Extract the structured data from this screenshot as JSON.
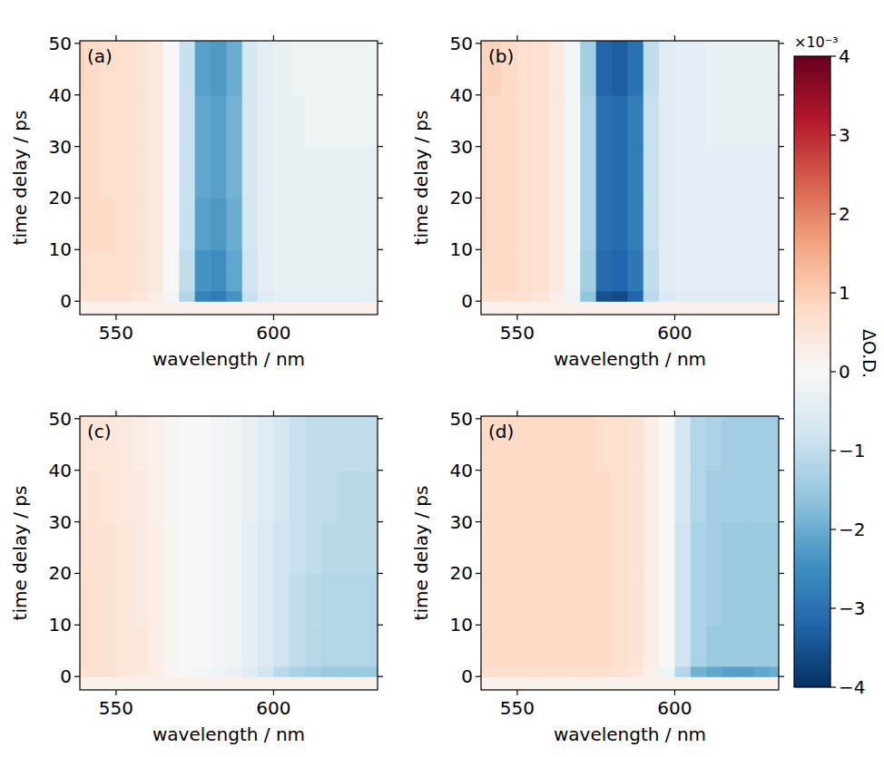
{
  "chart_data": {
    "type": "heatmap",
    "colorbar": {
      "label": "ΔO.D.",
      "offset_text": "×10⁻³",
      "clim": [
        -4,
        4
      ],
      "ticks": [
        {
          "value": -4,
          "label": "−4"
        },
        {
          "value": -3,
          "label": "−3"
        },
        {
          "value": -2,
          "label": "−2"
        },
        {
          "value": -1,
          "label": "−1"
        },
        0,
        1,
        2,
        3,
        4
      ]
    },
    "panels": [
      {
        "panel_label": "(a)",
        "x_label": "wavelength / nm",
        "y_label": "time delay / ps",
        "xlim": [
          538.5,
          633
        ],
        "ylim": [
          -2.6,
          50.5
        ],
        "xticks": [
          550,
          600
        ],
        "yticks": [
          0,
          10,
          20,
          30,
          40,
          50
        ],
        "x_edges": [
          535,
          540,
          545,
          550,
          555,
          560,
          565,
          570,
          575,
          580,
          585,
          590,
          595,
          600,
          605,
          610,
          615,
          620,
          625,
          630,
          635
        ],
        "y_edges": [
          -3,
          0,
          2,
          10,
          20,
          30,
          40,
          51
        ],
        "z": [
          [
            0.2,
            0.2,
            0.2,
            0.2,
            0.2,
            0.2,
            0.2,
            0.2,
            0.2,
            0.2,
            0.2,
            0.2,
            0.2,
            0.2,
            0.2,
            0.2,
            0.2,
            0.2,
            0.2,
            0.2
          ],
          [
            0.6,
            0.6,
            0.6,
            0.6,
            0.5,
            0.3,
            -0.1,
            -1.2,
            -2.7,
            -2.8,
            -2.4,
            -0.9,
            -0.5,
            -0.4,
            -0.4,
            -0.4,
            -0.4,
            -0.4,
            -0.4,
            -0.4
          ],
          [
            0.7,
            0.7,
            0.7,
            0.7,
            0.6,
            0.4,
            0,
            -1.0,
            -2.4,
            -2.5,
            -2.1,
            -0.8,
            -0.4,
            -0.3,
            -0.3,
            -0.3,
            -0.3,
            -0.3,
            -0.3,
            -0.3
          ],
          [
            0.8,
            0.8,
            0.8,
            0.7,
            0.6,
            0.4,
            0,
            -0.9,
            -2.2,
            -2.3,
            -2.0,
            -0.7,
            -0.4,
            -0.3,
            -0.3,
            -0.3,
            -0.3,
            -0.3,
            -0.3,
            -0.3
          ],
          [
            0.8,
            0.8,
            0.7,
            0.7,
            0.6,
            0.4,
            0,
            -0.9,
            -2.1,
            -2.2,
            -1.9,
            -0.7,
            -0.4,
            -0.3,
            -0.3,
            -0.3,
            -0.3,
            -0.3,
            -0.3,
            -0.3
          ],
          [
            0.8,
            0.8,
            0.7,
            0.7,
            0.6,
            0.4,
            0,
            -0.9,
            -2.1,
            -2.2,
            -1.9,
            -0.7,
            -0.4,
            -0.3,
            -0.3,
            -0.2,
            -0.2,
            -0.2,
            -0.2,
            -0.2
          ],
          [
            0.9,
            0.8,
            0.7,
            0.7,
            0.6,
            0.4,
            0,
            -0.9,
            -2.2,
            -2.3,
            -2.0,
            -0.7,
            -0.4,
            -0.3,
            -0.2,
            -0.2,
            -0.2,
            -0.2,
            -0.2,
            -0.2
          ]
        ]
      },
      {
        "panel_label": "(b)",
        "x_label": "wavelength / nm",
        "y_label": "time delay / ps",
        "xlim": [
          538.5,
          633
        ],
        "ylim": [
          -2.6,
          50.5
        ],
        "xticks": [
          550,
          600
        ],
        "yticks": [
          0,
          10,
          20,
          30,
          40,
          50
        ],
        "x_edges": [
          535,
          540,
          545,
          550,
          555,
          560,
          565,
          570,
          575,
          580,
          585,
          590,
          595,
          600,
          605,
          610,
          615,
          620,
          625,
          630,
          635
        ],
        "y_edges": [
          -3,
          0,
          2,
          10,
          20,
          30,
          40,
          51
        ],
        "z": [
          [
            0.2,
            0.2,
            0.2,
            0.2,
            0.2,
            0.2,
            0.2,
            0.2,
            0.2,
            0.2,
            0.2,
            0.2,
            0.2,
            0.2,
            0.2,
            0.2,
            0.2,
            0.2,
            0.2,
            0.2
          ],
          [
            0.7,
            0.7,
            0.7,
            0.6,
            0.5,
            0.3,
            -0.2,
            -1.6,
            -3.5,
            -3.6,
            -3.2,
            -1.1,
            -0.6,
            -0.5,
            -0.5,
            -0.5,
            -0.5,
            -0.5,
            -0.5,
            -0.5
          ],
          [
            0.8,
            0.8,
            0.8,
            0.7,
            0.6,
            0.4,
            -0.1,
            -1.4,
            -3.1,
            -3.2,
            -2.9,
            -1.0,
            -0.5,
            -0.4,
            -0.4,
            -0.4,
            -0.4,
            -0.4,
            -0.4,
            -0.4
          ],
          [
            0.9,
            0.8,
            0.8,
            0.7,
            0.6,
            0.4,
            -0.1,
            -1.3,
            -3.0,
            -3.1,
            -2.8,
            -0.9,
            -0.5,
            -0.4,
            -0.4,
            -0.4,
            -0.4,
            -0.4,
            -0.4,
            -0.4
          ],
          [
            0.9,
            0.8,
            0.8,
            0.7,
            0.6,
            0.4,
            -0.1,
            -1.3,
            -3.0,
            -3.1,
            -2.8,
            -0.9,
            -0.5,
            -0.4,
            -0.4,
            -0.4,
            -0.4,
            -0.4,
            -0.4,
            -0.4
          ],
          [
            0.9,
            0.8,
            0.8,
            0.7,
            0.6,
            0.4,
            -0.1,
            -1.3,
            -3.0,
            -3.1,
            -2.8,
            -0.9,
            -0.5,
            -0.4,
            -0.4,
            -0.3,
            -0.3,
            -0.3,
            -0.3,
            -0.3
          ],
          [
            0.9,
            0.9,
            0.8,
            0.7,
            0.6,
            0.4,
            -0.1,
            -1.4,
            -3.2,
            -3.3,
            -3.0,
            -1.0,
            -0.5,
            -0.4,
            -0.4,
            -0.3,
            -0.3,
            -0.3,
            -0.3,
            -0.3
          ]
        ]
      },
      {
        "panel_label": "(c)",
        "x_label": "wavelength / nm",
        "y_label": "time delay / ps",
        "xlim": [
          538.5,
          633
        ],
        "ylim": [
          -2.6,
          50.5
        ],
        "xticks": [
          550,
          600
        ],
        "yticks": [
          0,
          10,
          20,
          30,
          40,
          50
        ],
        "x_edges": [
          535,
          540,
          545,
          550,
          555,
          560,
          565,
          570,
          575,
          580,
          585,
          590,
          595,
          600,
          605,
          610,
          615,
          620,
          625,
          630,
          635
        ],
        "y_edges": [
          -3,
          0,
          2,
          10,
          20,
          30,
          40,
          51
        ],
        "z": [
          [
            0.2,
            0.2,
            0.2,
            0.2,
            0.2,
            0.2,
            0.2,
            0.2,
            0.2,
            0.2,
            0.2,
            0.2,
            0.2,
            0.2,
            0.2,
            0.2,
            0.2,
            0.2,
            0.2,
            0.2
          ],
          [
            0.6,
            0.6,
            0.6,
            0.5,
            0.4,
            0.3,
            0.1,
            0,
            -0.1,
            -0.2,
            -0.3,
            -0.5,
            -0.8,
            -1.1,
            -1.3,
            -1.4,
            -1.5,
            -1.5,
            -1.5,
            -1.5
          ],
          [
            0.7,
            0.7,
            0.6,
            0.5,
            0.5,
            0.3,
            0.1,
            0,
            0,
            -0.1,
            -0.2,
            -0.4,
            -0.6,
            -0.8,
            -1.0,
            -1.1,
            -1.2,
            -1.2,
            -1.2,
            -1.2
          ],
          [
            0.7,
            0.7,
            0.6,
            0.5,
            0.4,
            0.3,
            0.1,
            0,
            0,
            -0.1,
            -0.2,
            -0.4,
            -0.6,
            -0.8,
            -1.0,
            -1.1,
            -1.2,
            -1.2,
            -1.2,
            -1.2
          ],
          [
            0.7,
            0.6,
            0.6,
            0.5,
            0.4,
            0.3,
            0.1,
            0,
            0,
            -0.1,
            -0.2,
            -0.4,
            -0.6,
            -0.8,
            -0.9,
            -1.0,
            -1.1,
            -1.1,
            -1.1,
            -1.1
          ],
          [
            0.6,
            0.6,
            0.5,
            0.4,
            0.4,
            0.2,
            0.1,
            0,
            0,
            -0.1,
            -0.2,
            -0.3,
            -0.5,
            -0.7,
            -0.9,
            -1.0,
            -1.0,
            -1.1,
            -1.1,
            -1.1
          ],
          [
            0.6,
            0.5,
            0.5,
            0.4,
            0.3,
            0.2,
            0.1,
            0,
            0,
            -0.1,
            -0.2,
            -0.3,
            -0.5,
            -0.7,
            -0.9,
            -1.0,
            -1.0,
            -1.0,
            -1.0,
            -1.0
          ]
        ]
      },
      {
        "panel_label": "(d)",
        "x_label": "wavelength / nm",
        "y_label": "time delay / ps",
        "xlim": [
          538.5,
          633
        ],
        "ylim": [
          -2.6,
          50.5
        ],
        "xticks": [
          550,
          600
        ],
        "yticks": [
          0,
          10,
          20,
          30,
          40,
          50
        ],
        "x_edges": [
          535,
          540,
          545,
          550,
          555,
          560,
          565,
          570,
          575,
          580,
          585,
          590,
          595,
          600,
          605,
          610,
          615,
          620,
          625,
          630,
          635
        ],
        "y_edges": [
          -3,
          0,
          2,
          10,
          20,
          30,
          40,
          51
        ],
        "z": [
          [
            0.2,
            0.2,
            0.2,
            0.2,
            0.2,
            0.2,
            0.2,
            0.2,
            0.2,
            0.2,
            0.2,
            0.2,
            0.2,
            0.2,
            0.2,
            0.2,
            0.2,
            0.2,
            0.2,
            0.2
          ],
          [
            0.7,
            0.7,
            0.7,
            0.7,
            0.7,
            0.7,
            0.7,
            0.7,
            0.7,
            0.6,
            0.5,
            0.2,
            -0.2,
            -1.2,
            -1.9,
            -2.1,
            -2.2,
            -2.2,
            -2.1,
            -2.0
          ],
          [
            0.8,
            0.8,
            0.8,
            0.8,
            0.8,
            0.8,
            0.8,
            0.8,
            0.8,
            0.7,
            0.6,
            0.3,
            0,
            -0.8,
            -1.3,
            -1.5,
            -1.5,
            -1.5,
            -1.5,
            -1.5
          ],
          [
            0.8,
            0.8,
            0.8,
            0.8,
            0.8,
            0.8,
            0.8,
            0.8,
            0.8,
            0.7,
            0.6,
            0.3,
            0,
            -0.8,
            -1.3,
            -1.4,
            -1.5,
            -1.5,
            -1.5,
            -1.5
          ],
          [
            0.8,
            0.8,
            0.8,
            0.8,
            0.8,
            0.8,
            0.8,
            0.8,
            0.8,
            0.7,
            0.6,
            0.3,
            0,
            -0.8,
            -1.3,
            -1.4,
            -1.5,
            -1.5,
            -1.5,
            -1.5
          ],
          [
            0.8,
            0.8,
            0.8,
            0.8,
            0.8,
            0.8,
            0.8,
            0.8,
            0.8,
            0.7,
            0.6,
            0.3,
            0,
            -0.7,
            -1.2,
            -1.4,
            -1.4,
            -1.4,
            -1.4,
            -1.4
          ],
          [
            0.8,
            0.8,
            0.8,
            0.8,
            0.8,
            0.8,
            0.8,
            0.8,
            0.7,
            0.7,
            0.6,
            0.3,
            0,
            -0.7,
            -1.2,
            -1.3,
            -1.4,
            -1.4,
            -1.4,
            -1.4
          ]
        ]
      }
    ]
  }
}
